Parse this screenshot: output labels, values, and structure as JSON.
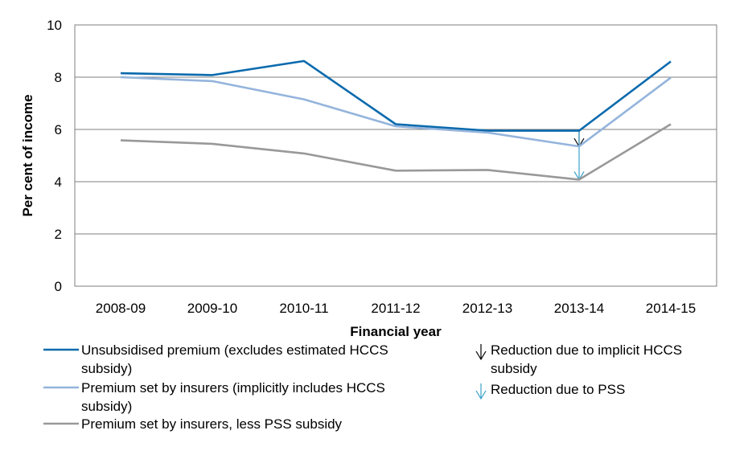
{
  "chart_data": {
    "type": "line",
    "categories": [
      "2008-09",
      "2009-10",
      "2010-11",
      "2011-12",
      "2012-13",
      "2013-14",
      "2014-15"
    ],
    "ylim": [
      0,
      10
    ],
    "yticks": [
      "0",
      "2",
      "4",
      "6",
      "8",
      "10"
    ],
    "xlabel": "Financial year",
    "ylabel": "Per cent of income",
    "grid": true,
    "legend_position": "bottom",
    "series": [
      {
        "legend_lines": [
          "Unsubsidised premium (excludes estimated HCCS",
          "subsidy)"
        ],
        "color": "#0a6aad",
        "values": [
          8.15,
          8.08,
          8.62,
          6.2,
          5.95,
          5.95,
          8.6
        ]
      },
      {
        "legend_lines": [
          "Premium set by insurers (implicitly includes HCCS",
          "subsidy)"
        ],
        "color": "#94b4dc",
        "values": [
          8.0,
          7.85,
          7.15,
          6.12,
          5.88,
          5.35,
          7.98
        ]
      },
      {
        "legend_lines": [
          "Premium set by insurers, less PSS subsidy"
        ],
        "color": "#999999",
        "values": [
          5.58,
          5.45,
          5.08,
          4.42,
          4.45,
          4.08,
          6.2
        ]
      }
    ],
    "annotations": [
      {
        "type": "arrow",
        "category": "2013-14",
        "from": 5.95,
        "to": 5.35,
        "color": "#000000",
        "legend_lines": [
          "Reduction due to implicit HCCS",
          "subsidy"
        ]
      },
      {
        "type": "arrow",
        "category": "2013-14",
        "from": 5.95,
        "to": 4.08,
        "color": "#3aa0c8",
        "legend_lines": [
          "Reduction due to PSS"
        ]
      }
    ]
  }
}
